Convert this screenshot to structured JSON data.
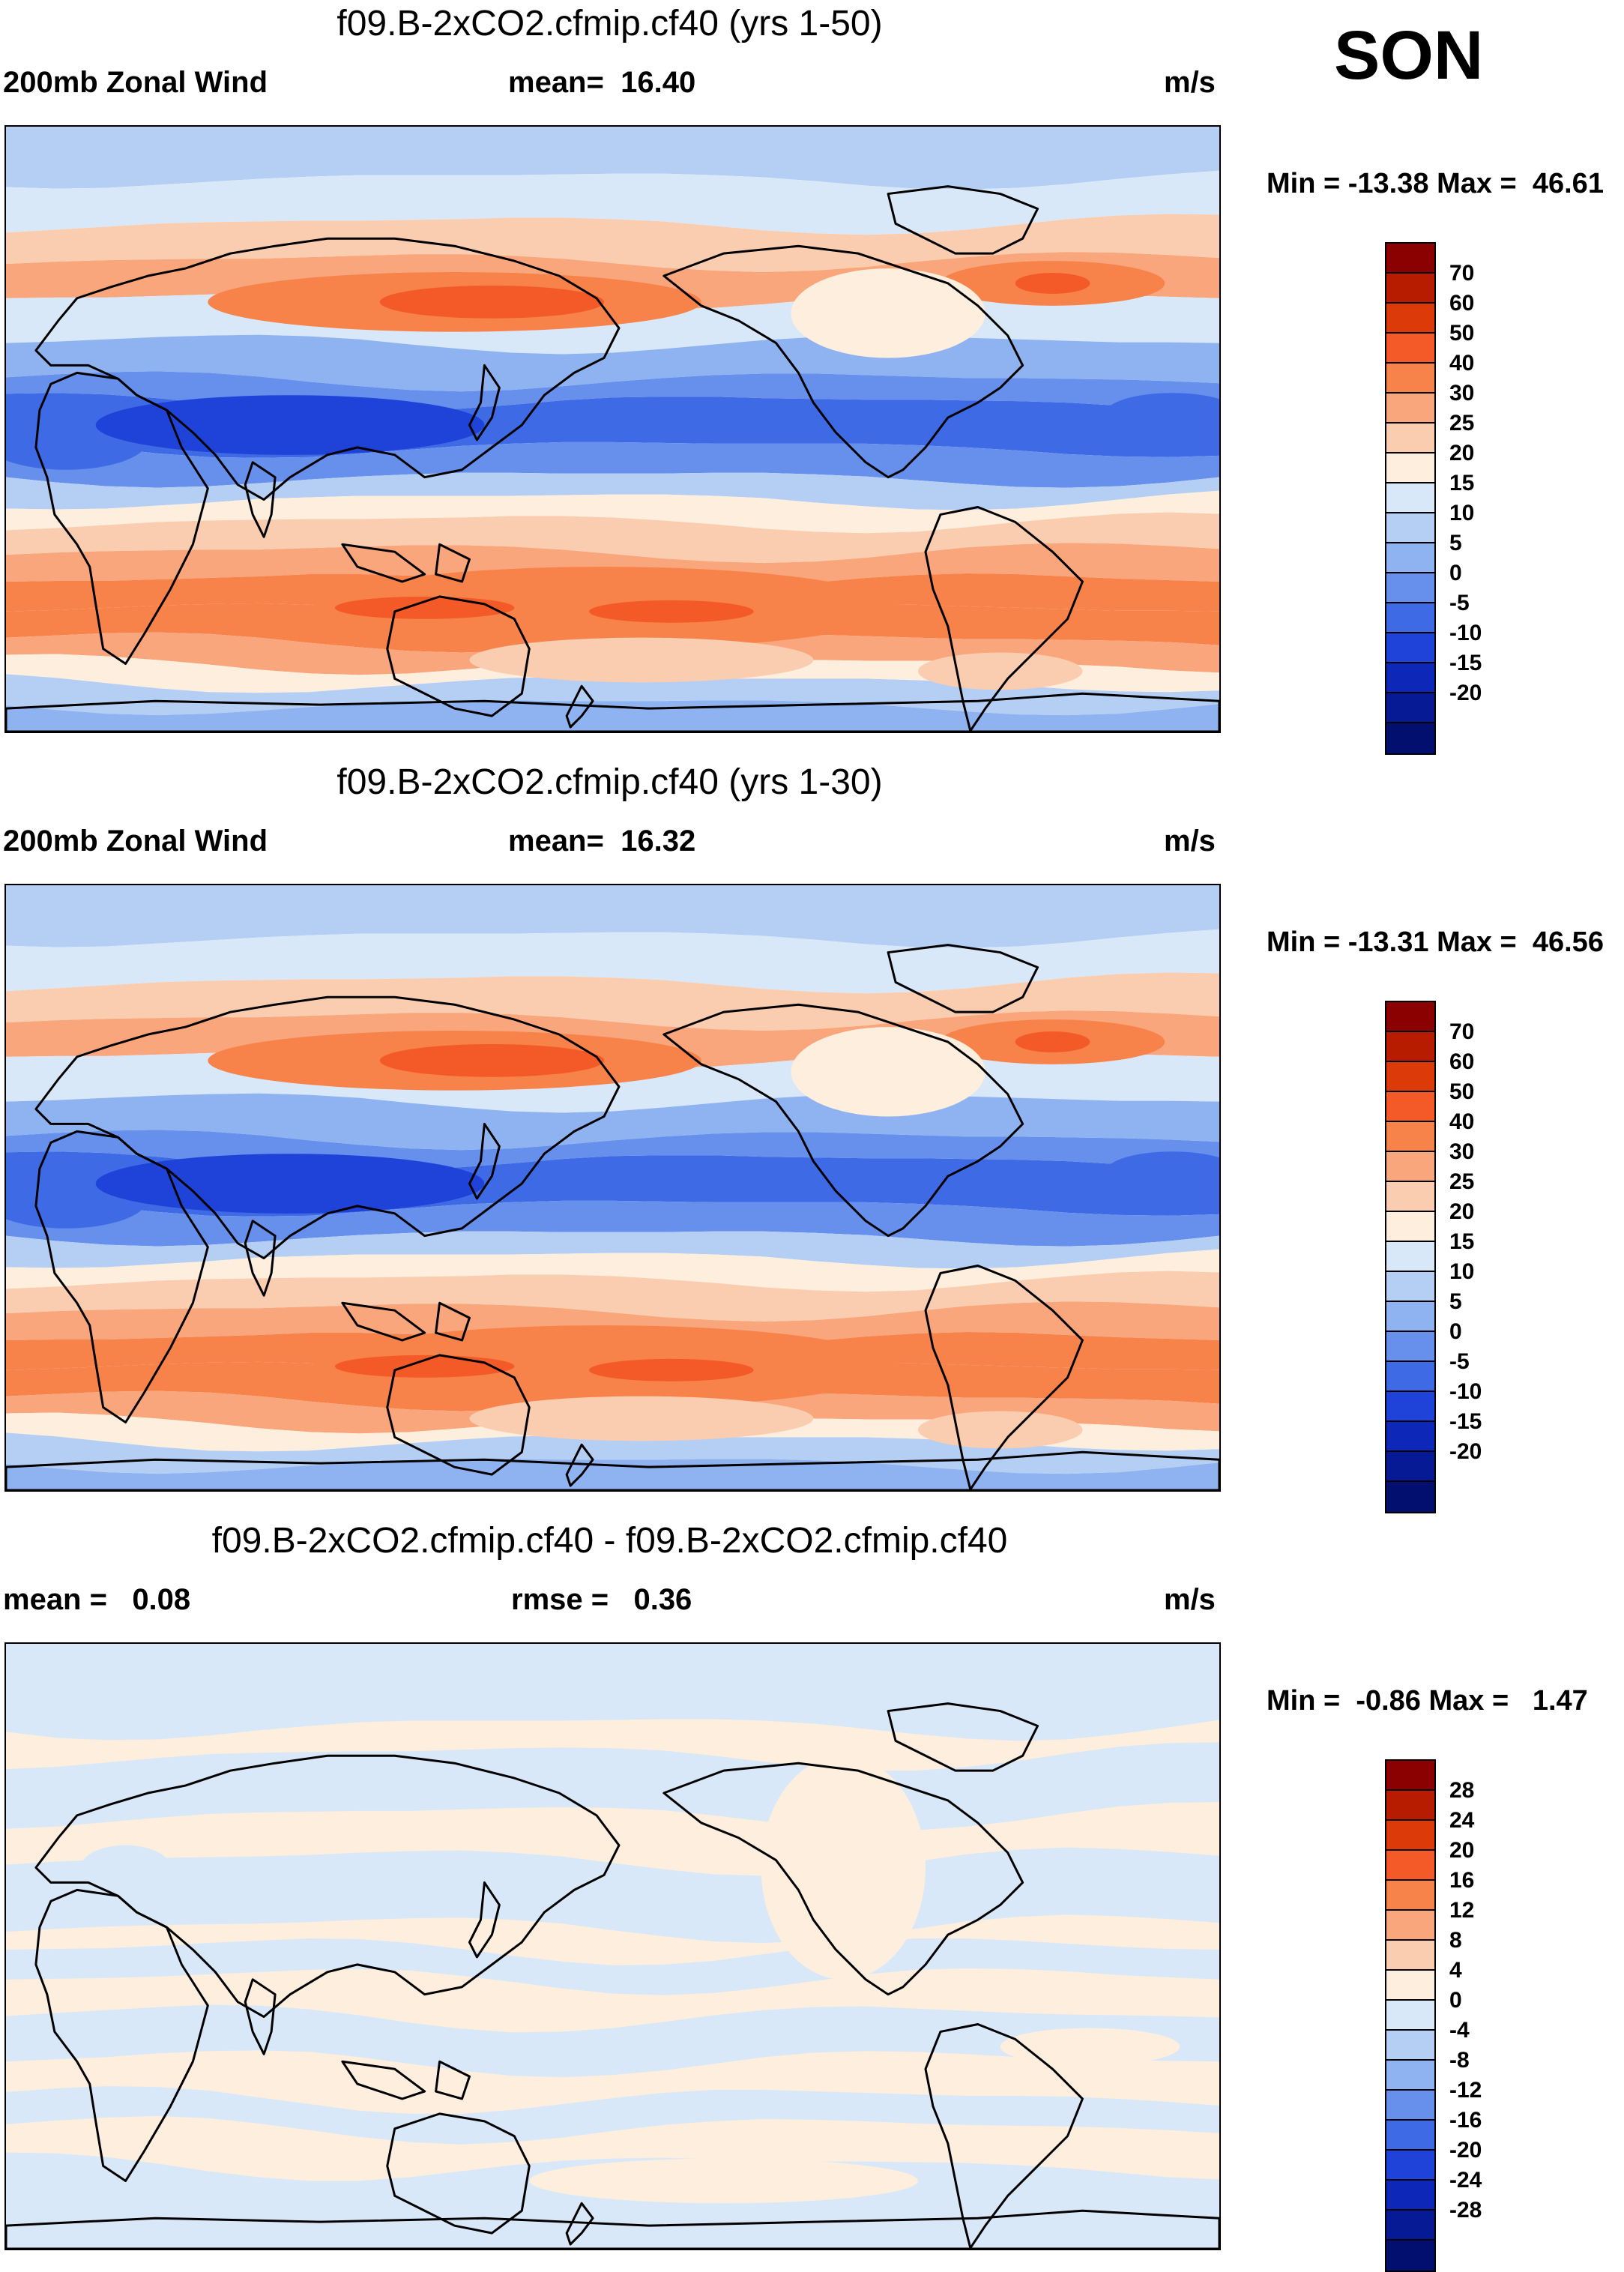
{
  "season": "SON",
  "units": "m/s",
  "panels": [
    {
      "title": "f09.B-2xCO2.cfmip.cf40 (yrs 1-50)",
      "variable": "200mb Zonal Wind",
      "stat_label": "mean=",
      "stat_value": "16.40",
      "min_label": "Min =",
      "min_value": "-13.38",
      "max_label": "Max =",
      "max_value": "46.61",
      "map": "zonal"
    },
    {
      "title": "f09.B-2xCO2.cfmip.cf40 (yrs 1-30)",
      "variable": "200mb Zonal Wind",
      "stat_label": "mean=",
      "stat_value": "16.32",
      "min_label": "Min =",
      "min_value": "-13.31",
      "max_label": "Max =",
      "max_value": "46.56",
      "map": "zonal"
    },
    {
      "title": "f09.B-2xCO2.cfmip.cf40 - f09.B-2xCO2.cfmip.cf40",
      "mean_label": "mean =",
      "mean_value": "0.08",
      "rmse_label": "rmse =",
      "rmse_value": "0.36",
      "min_label": "Min =",
      "min_value": "-0.86",
      "max_label": "Max =",
      "max_value": "1.47",
      "map": "diff"
    }
  ],
  "colorbar_main": {
    "colors": [
      "#8b0000",
      "#b81c00",
      "#dd3a0a",
      "#f45a28",
      "#f7824a",
      "#f9a67c",
      "#fbcdb0",
      "#fdeedd",
      "#d9e8f8",
      "#b5cff4",
      "#8fb3f0",
      "#6690ec",
      "#3f6ae6",
      "#1f43d9",
      "#0d28b8",
      "#061a96",
      "#020f6e"
    ],
    "labels": [
      "70",
      "60",
      "50",
      "40",
      "30",
      "25",
      "20",
      "15",
      "10",
      "5",
      "0",
      "-5",
      "-10",
      "-15",
      "-20"
    ]
  },
  "colorbar_diff": {
    "colors": [
      "#8b0000",
      "#b81c00",
      "#dd3a0a",
      "#f45a28",
      "#f7824a",
      "#f9a67c",
      "#fbcdb0",
      "#fdeedd",
      "#d9e8f8",
      "#b5cff4",
      "#8fb3f0",
      "#6690ec",
      "#3f6ae6",
      "#1f43d9",
      "#0d28b8",
      "#061a96",
      "#020f6e"
    ],
    "labels": [
      "28",
      "24",
      "20",
      "16",
      "12",
      "8",
      "4",
      "0",
      "-4",
      "-8",
      "-12",
      "-16",
      "-20",
      "-24",
      "-28"
    ]
  },
  "zonal_colors": {
    "c25": "#f9a67c",
    "c30": "#f7824a",
    "c40": "#f45a28",
    "c15": "#fbcdb0",
    "c10": "#fdeedd",
    "c5": "#d9e8f8",
    "c0": "#b5cff4",
    "cm5": "#8fb3f0",
    "cm10": "#6690ec",
    "cm15": "#3f6ae6",
    "cm20": "#1f43d9"
  },
  "diff_colors": {
    "pos": "#fdeedd",
    "neg": "#d9e8f8"
  }
}
